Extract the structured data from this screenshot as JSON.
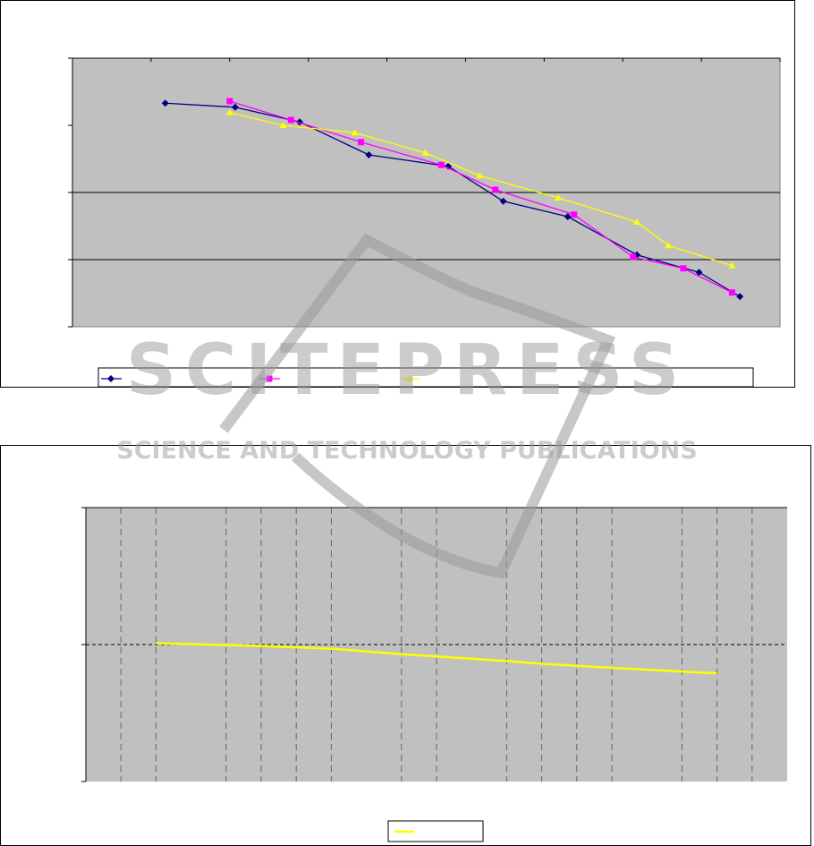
{
  "chart_data": [
    {
      "type": "line",
      "title": "",
      "xlabel": "",
      "ylabel": "",
      "xlim": [
        0,
        9
      ],
      "ylim": [
        0,
        4
      ],
      "grid": "horizontal major gridlines at 1 and 2",
      "legend": "bottom",
      "plot_background": "#c0c0c0",
      "series": [
        {
          "color": "#000080",
          "marker": "diamond",
          "x": [
            1.18,
            2.07,
            2.89,
            3.77,
            4.78,
            5.48,
            6.3,
            7.18,
            7.97,
            8.49
          ],
          "y": [
            3.33,
            3.27,
            3.05,
            2.56,
            2.39,
            1.87,
            1.64,
            1.07,
            0.81,
            0.45
          ]
        },
        {
          "color": "#ff00ff",
          "marker": "square",
          "x": [
            2.0,
            2.78,
            3.67,
            4.69,
            5.38,
            6.38,
            7.13,
            7.77,
            8.39
          ],
          "y": [
            3.36,
            3.08,
            2.75,
            2.41,
            2.04,
            1.67,
            1.04,
            0.87,
            0.51
          ]
        },
        {
          "color": "#ffff00",
          "marker": "triangle",
          "x": [
            2.0,
            2.68,
            3.59,
            4.49,
            5.18,
            6.18,
            7.18,
            7.58,
            8.39
          ],
          "y": [
            3.19,
            3.0,
            2.89,
            2.59,
            2.25,
            1.92,
            1.56,
            1.21,
            0.91
          ]
        }
      ]
    },
    {
      "type": "line",
      "title": "",
      "xlabel": "",
      "ylabel": "",
      "xlim": [
        0,
        20
      ],
      "ylim": [
        0,
        2
      ],
      "grid": "dashed vertical gridlines, dashed horizontal line at 1",
      "legend": "bottom",
      "plot_background": "#c0c0c0",
      "vgrid": [
        1,
        2,
        4,
        5,
        6,
        7,
        9,
        10,
        12,
        13,
        14,
        15,
        17,
        18,
        19
      ],
      "series": [
        {
          "color": "#ffff00",
          "marker": "none",
          "x": [
            2,
            5,
            7,
            9,
            12,
            13,
            15,
            18
          ],
          "y": [
            1.01,
            0.99,
            0.97,
            0.93,
            0.88,
            0.86,
            0.83,
            0.79
          ]
        }
      ]
    }
  ],
  "watermark": {
    "logo_text": "SCITEPRESS",
    "tagline": "SCIENCE AND TECHNOLOGY PUBLICATIONS"
  }
}
